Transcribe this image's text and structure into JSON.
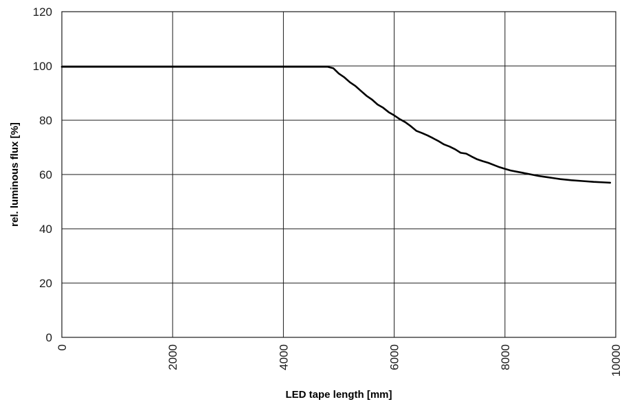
{
  "chart_data": {
    "type": "line",
    "title": "",
    "xlabel": "LED tape length [mm]",
    "ylabel": "rel. luminous flux [%]",
    "xlim": [
      0,
      10000
    ],
    "ylim": [
      0,
      120
    ],
    "xticks": [
      0,
      2000,
      4000,
      6000,
      8000,
      10000
    ],
    "yticks": [
      0,
      20,
      40,
      60,
      80,
      100,
      120
    ],
    "grid": true,
    "legend": "none",
    "series": [
      {
        "color": "#000000",
        "x": [
          0,
          4000,
          4800,
          4900,
          5000,
          5100,
          5200,
          5300,
          5400,
          5500,
          5600,
          5700,
          5800,
          5900,
          6000,
          6100,
          6200,
          6300,
          6400,
          6500,
          6600,
          6700,
          6800,
          6900,
          7000,
          7100,
          7200,
          7300,
          7400,
          7500,
          7600,
          7700,
          7800,
          7900,
          8000,
          8100,
          8200,
          8300,
          8400,
          8500,
          8600,
          8700,
          8800,
          8900,
          9000,
          9200,
          9400,
          9600,
          9800,
          9900
        ],
        "y": [
          99.7,
          99.7,
          99.7,
          99.2,
          97.2,
          95.8,
          94.0,
          92.6,
          90.8,
          89.0,
          87.6,
          85.8,
          84.6,
          83.0,
          81.8,
          80.4,
          79.3,
          77.8,
          76.1,
          75.3,
          74.4,
          73.4,
          72.3,
          71.1,
          70.3,
          69.3,
          68.0,
          67.7,
          66.6,
          65.6,
          64.9,
          64.3,
          63.5,
          62.7,
          62.1,
          61.5,
          61.1,
          60.7,
          60.3,
          59.9,
          59.5,
          59.2,
          58.9,
          58.6,
          58.3,
          57.9,
          57.6,
          57.3,
          57.1,
          57.0
        ]
      }
    ]
  }
}
